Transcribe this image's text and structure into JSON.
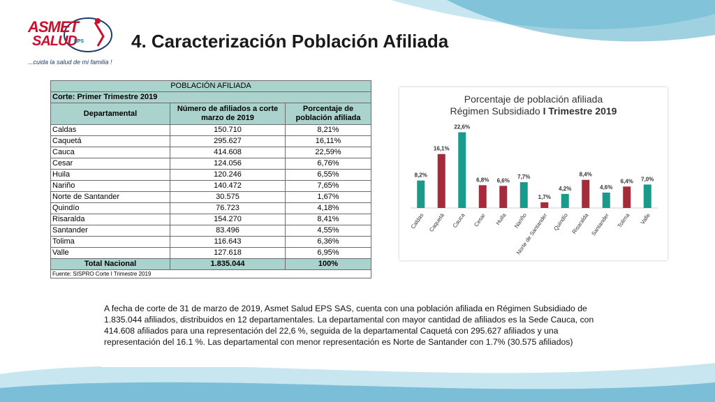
{
  "logo": {
    "line1": "ASMET",
    "line2": "SALUD",
    "eps": "EPS",
    "tagline": "...cuida la salud de mi familia !"
  },
  "page": {
    "title": "4. Caracterización Población Afiliada"
  },
  "table": {
    "title": "POBLACIÓN AFILIADA",
    "subtitle": "Corte: Primer Trimestre 2019",
    "headers": [
      "Departamental",
      "Número de afiliados a corte marzo de 2019",
      "Porcentaje de población afiliada"
    ],
    "rows": [
      [
        "Caldas",
        "150.710",
        "8,21%"
      ],
      [
        "Caquetá",
        "295.627",
        "16,11%"
      ],
      [
        "Cauca",
        "414.608",
        "22,59%"
      ],
      [
        "Cesar",
        "124.056",
        "6,76%"
      ],
      [
        "Huila",
        "120.246",
        "6,55%"
      ],
      [
        "Nariño",
        "140.472",
        "7,65%"
      ],
      [
        "Norte de Santander",
        "30.575",
        "1,67%"
      ],
      [
        "Quindío",
        "76.723",
        "4,18%"
      ],
      [
        "Risaralda",
        "154.270",
        "8,41%"
      ],
      [
        "Santander",
        "83.496",
        "4,55%"
      ],
      [
        "Tolima",
        "116.643",
        "6,36%"
      ],
      [
        "Valle",
        "127.618",
        "6,95%"
      ]
    ],
    "total": [
      "Total Nacional",
      "1.835.044",
      "100%"
    ],
    "source": "Fuente: SISPRO Corte I Trimestre 2019"
  },
  "chart_data": {
    "type": "bar",
    "title_line1": "Porcentaje de población afiliada",
    "title_line2_prefix": "Régimen Subsidiado ",
    "title_line2_bold": "I Trimestre 2019",
    "categories": [
      "Caldas",
      "Caquetá",
      "Cauca",
      "Cesar",
      "Huila",
      "Nariño",
      "Norte de Santander",
      "Quindío",
      "Risaralda",
      "Santander",
      "Tolima",
      "Valle"
    ],
    "values": [
      8.2,
      16.1,
      22.6,
      6.8,
      6.6,
      7.7,
      1.7,
      4.2,
      8.4,
      4.6,
      6.4,
      7.0
    ],
    "labels": [
      "8,2%",
      "16,1%",
      "22,6%",
      "6,8%",
      "6,6%",
      "7,7%",
      "1,7%",
      "4,2%",
      "8,4%",
      "4,6%",
      "6,4%",
      "7,0%"
    ],
    "bar_colors": [
      "#1a9a8a",
      "#a52a3a",
      "#1a9a8a",
      "#a52a3a",
      "#a52a3a",
      "#1a9a8a",
      "#a52a3a",
      "#1a9a8a",
      "#a52a3a",
      "#1a9a8a",
      "#a52a3a",
      "#1a9a8a"
    ],
    "ylim": [
      0,
      25
    ],
    "grid": false,
    "legend": "none"
  },
  "summary": {
    "text": "A fecha de corte de 31 de marzo de 2019, Asmet Salud EPS SAS, cuenta con una población afiliada en Régimen Subsidiado de 1.835.044 afiliados, distribuidos en 12 departamentales. La departamental con mayor cantidad de afiliados es la Sede Cauca, con 414.608 afiliados para una representación del 22,6 %, seguida de la departamental Caquetá con 295.627 afiliados y una representación del 16.1 %. Las departamental con menor representación es Norte de Santander con 1.7% (30.575 afiliados)"
  },
  "colors": {
    "header_fill": "#a9d3cc",
    "teal": "#1a9a8a",
    "maroon": "#a52a3a",
    "brand_red": "#c8102e"
  }
}
